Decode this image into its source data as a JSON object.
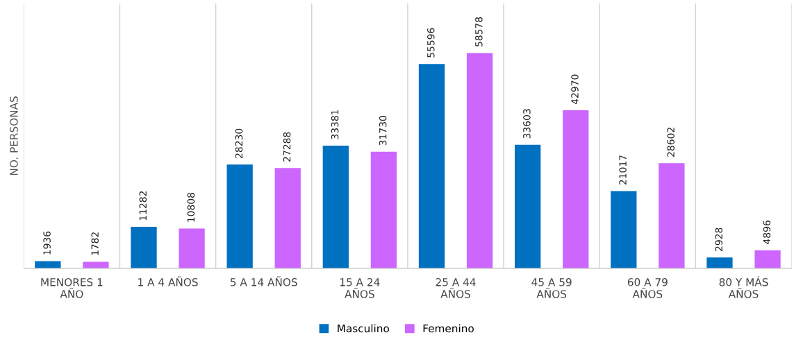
{
  "chart_data": {
    "type": "bar",
    "ylabel": "NO. PERSONAS",
    "categories": [
      "MENORES 1\nAÑO",
      "1 A 4 AÑOS",
      "5 A 14 AÑOS",
      "15 A 24\nAÑOS",
      "25 A 44\nAÑOS",
      "45 A 59\nAÑOS",
      "60 A 79\nAÑOS",
      "80 Y MÁS\nAÑOS"
    ],
    "series": [
      {
        "name": "Masculino",
        "color": "#0070c0",
        "values": [
          1936,
          11282,
          28230,
          33381,
          55596,
          33603,
          21017,
          2928
        ]
      },
      {
        "name": "Femenino",
        "color": "#cc66ff",
        "values": [
          1782,
          10808,
          27288,
          31730,
          58578,
          42970,
          28602,
          4896
        ]
      }
    ],
    "data_labels": true,
    "grid": "x",
    "legend": "bottom",
    "tick_labels": "x"
  }
}
